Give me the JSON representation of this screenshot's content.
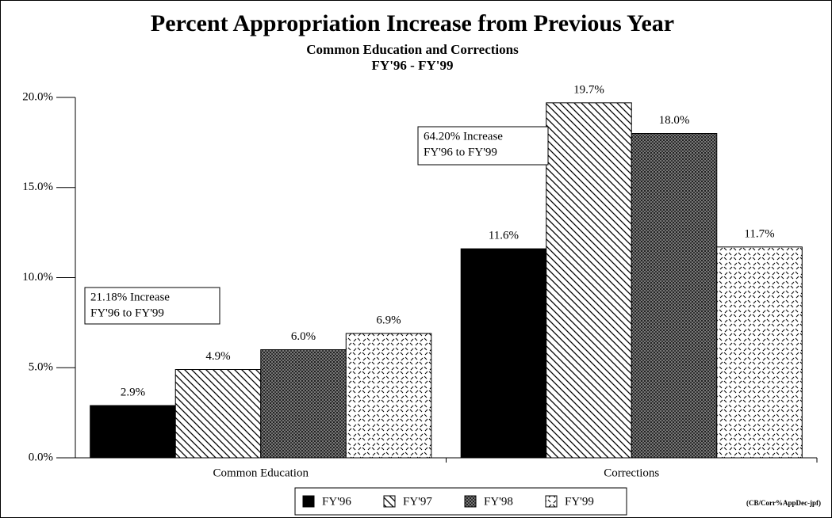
{
  "chart_data": {
    "type": "bar",
    "title": "Percent Appropriation Increase from Previous Year",
    "subtitle": [
      "Common Education and Corrections",
      "FY'96 - FY'99"
    ],
    "categories": [
      "Common Education",
      "Corrections"
    ],
    "series": [
      {
        "name": "FY'96",
        "color": "#000000",
        "pattern": "solid",
        "values": [
          2.9,
          11.6
        ],
        "value_labels": [
          "2.9%",
          "11.6%"
        ]
      },
      {
        "name": "FY'97",
        "color": "#000000",
        "pattern": "hatch",
        "values": [
          4.9,
          19.7
        ],
        "value_labels": [
          "4.9%",
          "19.7%"
        ]
      },
      {
        "name": "FY'98",
        "color": "#000000",
        "pattern": "crosshatch",
        "values": [
          6.0,
          18.0
        ],
        "value_labels": [
          "6.0%",
          "18.0%"
        ]
      },
      {
        "name": "FY'99",
        "color": "#000000",
        "pattern": "dashed",
        "values": [
          6.9,
          11.7
        ],
        "value_labels": [
          "6.9%",
          "11.7%"
        ]
      }
    ],
    "ylim": [
      0,
      20
    ],
    "yticks": [
      {
        "value": 0,
        "label": "0.0%"
      },
      {
        "value": 5,
        "label": "5.0%"
      },
      {
        "value": 10,
        "label": "10.0%"
      },
      {
        "value": 15,
        "label": "15.0%"
      },
      {
        "value": 20,
        "label": "20.0%"
      }
    ],
    "annotations": [
      {
        "lines": [
          "21.18% Increase",
          "FY'96 to FY'99"
        ]
      },
      {
        "lines": [
          "64.20% Increase",
          "FY'96 to FY'99"
        ]
      }
    ],
    "legend": "bottom",
    "footnote": "(CB/Corr%AppDec-jpf)"
  }
}
